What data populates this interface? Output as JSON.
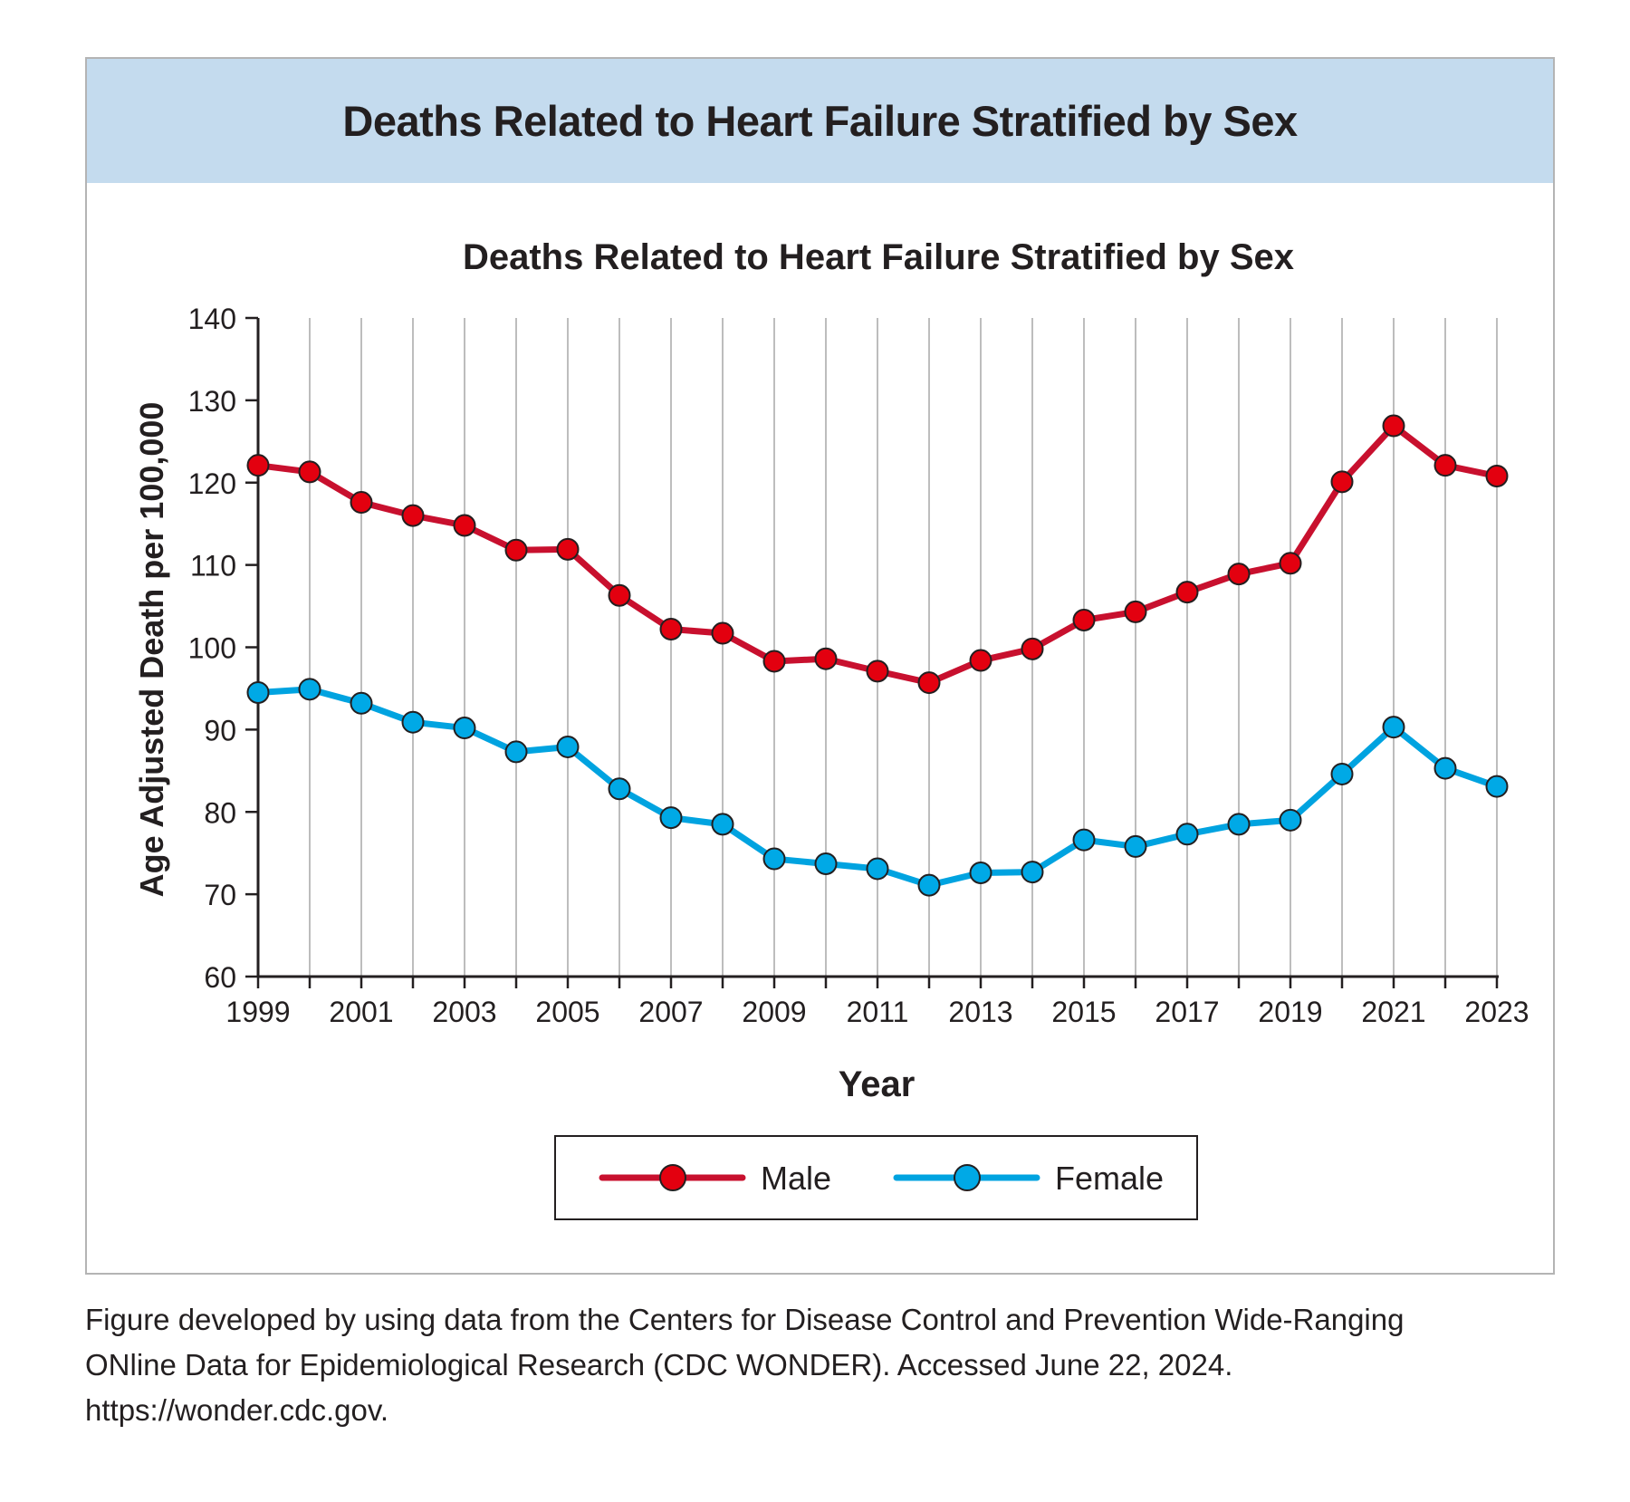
{
  "banner_title": "Deaths Related to Heart Failure Stratified by Sex",
  "caption": {
    "line1": "Figure developed by using data from the Centers for Disease Control and Prevention Wide-Ranging",
    "line2": "ONline Data for Epidemiological Research (CDC WONDER). Accessed June 22, 2024.",
    "line3": "https://wonder.cdc.gov."
  },
  "chart_data": {
    "type": "line",
    "title": "Deaths Related to Heart Failure Stratified by Sex",
    "xlabel": "Year",
    "ylabel": "Age Adjusted Death per 100,000",
    "ylim": [
      60,
      140
    ],
    "yticks": [
      60,
      70,
      80,
      90,
      100,
      110,
      120,
      130,
      140
    ],
    "xticks": [
      1999,
      2001,
      2003,
      2005,
      2007,
      2009,
      2011,
      2013,
      2015,
      2017,
      2019,
      2021,
      2023
    ],
    "x": [
      1999,
      2000,
      2001,
      2002,
      2003,
      2004,
      2005,
      2006,
      2007,
      2008,
      2009,
      2010,
      2011,
      2012,
      2013,
      2014,
      2015,
      2016,
      2017,
      2018,
      2019,
      2020,
      2021,
      2022,
      2023
    ],
    "grid": "vertical",
    "legend": "bottom",
    "series": [
      {
        "name": "Male",
        "color": "#c8102e",
        "marker_color": "#e3000f",
        "values": [
          122.1,
          121.3,
          117.6,
          116.0,
          114.8,
          111.8,
          111.9,
          106.3,
          102.2,
          101.7,
          98.3,
          98.6,
          97.1,
          95.7,
          98.4,
          99.8,
          103.3,
          104.3,
          106.7,
          108.9,
          110.2,
          120.1,
          126.9,
          122.1,
          120.8
        ]
      },
      {
        "name": "Female",
        "color": "#00a3e0",
        "marker_color": "#00a9e6",
        "values": [
          94.5,
          94.9,
          93.2,
          90.9,
          90.2,
          87.3,
          87.9,
          82.8,
          79.3,
          78.5,
          74.3,
          73.7,
          73.1,
          71.1,
          72.6,
          72.7,
          76.6,
          75.8,
          77.3,
          78.5,
          79.0,
          84.6,
          90.3,
          85.3,
          83.1
        ]
      }
    ]
  }
}
